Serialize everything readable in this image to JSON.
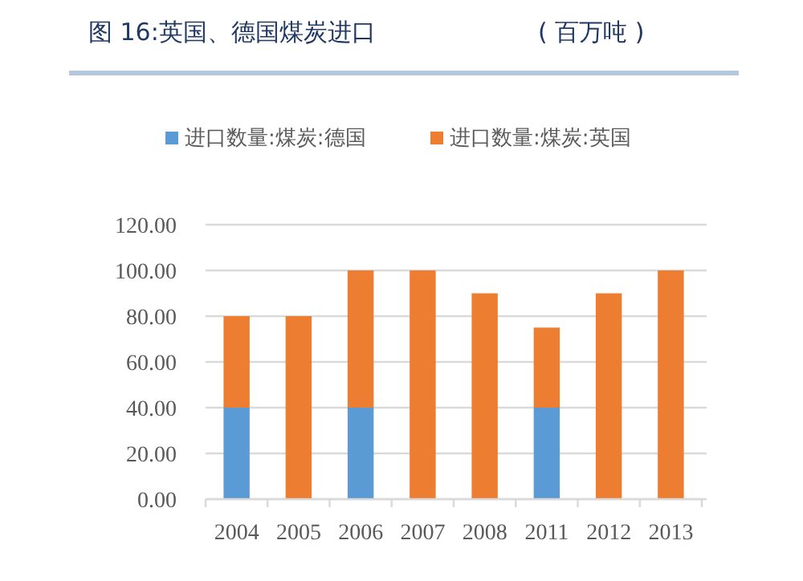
{
  "chart_data": {
    "type": "bar",
    "title": "图 16:英国、德国煤炭进口",
    "subtitle": "( 百万吨 )",
    "categories": [
      "2004",
      "2005",
      "2006",
      "2007",
      "2008",
      "2011",
      "2012",
      "2013"
    ],
    "stacked": true,
    "series": [
      {
        "name": "进口数量:煤炭:德国",
        "color": "#5b9bd5",
        "values": [
          40,
          0,
          40,
          0,
          0,
          40,
          0,
          0
        ]
      },
      {
        "name": "进口数量:煤炭:英国",
        "color": "#ed7d31",
        "values": [
          40,
          80,
          60,
          100,
          90,
          35,
          90,
          100
        ]
      }
    ],
    "ylim": [
      0,
      120
    ],
    "yticks": [
      {
        "value": 0,
        "label": "0.00"
      },
      {
        "value": 20,
        "label": "20.00"
      },
      {
        "value": 40,
        "label": "40.00"
      },
      {
        "value": 60,
        "label": "60.00"
      },
      {
        "value": 80,
        "label": "80.00"
      },
      {
        "value": 100,
        "label": "100.00"
      },
      {
        "value": 120,
        "label": "120.00"
      }
    ],
    "grid": "y",
    "legend": "top"
  }
}
